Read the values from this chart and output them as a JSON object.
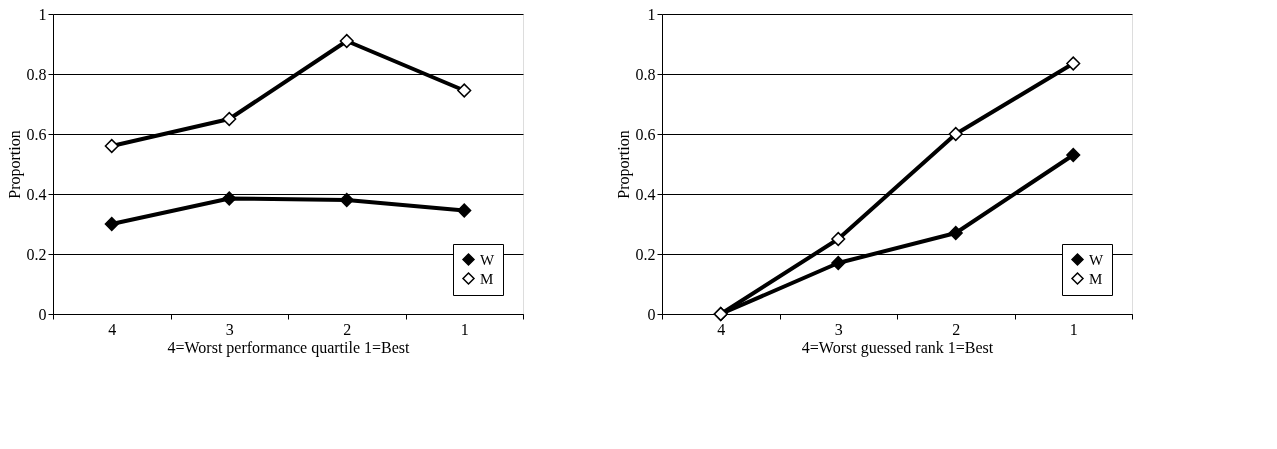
{
  "chart_data": [
    {
      "type": "line",
      "categories": [
        "4",
        "3",
        "2",
        "1"
      ],
      "xlabel": "4=Worst     performance quartile     1=Best",
      "ylabel": "Proportion",
      "ylim": [
        0,
        1
      ],
      "yticks": [
        0,
        0.2,
        0.4,
        0.6,
        0.8,
        1
      ],
      "grid": "y",
      "legend": "bottom right",
      "marker": "diamond",
      "line_style": "solid",
      "series": [
        {
          "name": "W",
          "color": "#000000",
          "values": [
            0.3,
            0.385,
            0.38,
            0.345
          ]
        },
        {
          "name": "M",
          "color": "#ffffff",
          "values": [
            0.56,
            0.65,
            0.91,
            0.745
          ]
        }
      ]
    },
    {
      "type": "line",
      "categories": [
        "4",
        "3",
        "2",
        "1"
      ],
      "xlabel": "4=Worst     guessed rank     1=Best",
      "ylabel": "Proportion",
      "ylim": [
        0,
        1
      ],
      "yticks": [
        0,
        0.2,
        0.4,
        0.6,
        0.8,
        1
      ],
      "grid": "y",
      "legend": "bottom right",
      "marker": "diamond",
      "line_style": "solid",
      "series": [
        {
          "name": "W",
          "color": "#000000",
          "values": [
            0,
            0.17,
            0.27,
            0.53
          ]
        },
        {
          "name": "M",
          "color": "#ffffff",
          "values": [
            0,
            0.25,
            0.6,
            0.835
          ]
        }
      ]
    }
  ]
}
